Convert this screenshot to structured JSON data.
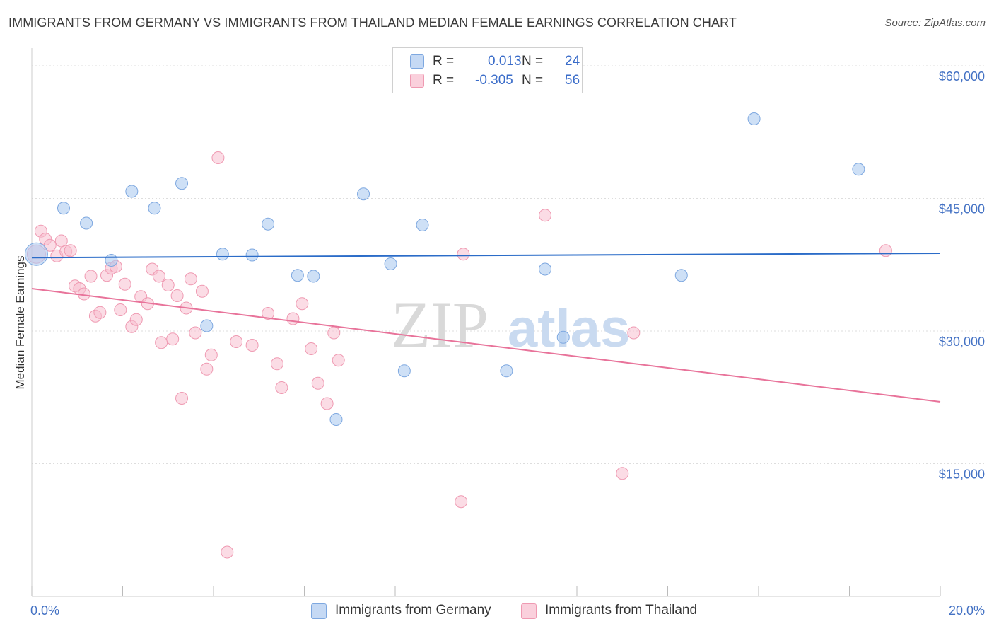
{
  "title": "IMMIGRANTS FROM GERMANY VS IMMIGRANTS FROM THAILAND MEDIAN FEMALE EARNINGS CORRELATION CHART",
  "source": "Source: ZipAtlas.com",
  "watermark": {
    "zip": "ZIP",
    "atlas": "atlas"
  },
  "legend": {
    "rows": [
      {
        "r_label": "R =",
        "r_value": "0.013",
        "n_label": "N =",
        "n_value": "24"
      },
      {
        "r_label": "R =",
        "r_value": "-0.305",
        "n_label": "N =",
        "n_value": "56"
      }
    ]
  },
  "colors": {
    "germany_fill": "#aecbf0",
    "germany_stroke": "#7ea8e0",
    "germany_line": "#2b6cc8",
    "thailand_fill": "#f7bfcf",
    "thailand_stroke": "#ef9ab2",
    "thailand_line": "#e8739a",
    "axis_text": "#4472c4",
    "grid": "#dddddd"
  },
  "chart_data": {
    "type": "scatter",
    "title": "IMMIGRANTS FROM GERMANY VS IMMIGRANTS FROM THAILAND MEDIAN FEMALE EARNINGS CORRELATION CHART",
    "xlabel": "",
    "ylabel": "Median Female Earnings",
    "xlim": [
      0,
      20
    ],
    "ylim": [
      0,
      62000
    ],
    "x_tick_labels": [
      "0.0%",
      "20.0%"
    ],
    "y_ticks": [
      15000,
      30000,
      45000,
      60000
    ],
    "y_tick_labels": [
      "$15,000",
      "$30,000",
      "$45,000",
      "$60,000"
    ],
    "series": [
      {
        "name": "Immigrants from Germany",
        "color": "#aecbf0",
        "trend": {
          "x": [
            0,
            20
          ],
          "y": [
            38300,
            38800
          ]
        },
        "points": [
          {
            "x": 0.1,
            "y": 38700,
            "big": true
          },
          {
            "x": 0.7,
            "y": 43900
          },
          {
            "x": 1.2,
            "y": 42200
          },
          {
            "x": 1.75,
            "y": 38000
          },
          {
            "x": 2.2,
            "y": 45800
          },
          {
            "x": 2.7,
            "y": 43900
          },
          {
            "x": 3.3,
            "y": 46700
          },
          {
            "x": 3.85,
            "y": 30600
          },
          {
            "x": 4.2,
            "y": 38700
          },
          {
            "x": 4.85,
            "y": 38600
          },
          {
            "x": 5.2,
            "y": 42100
          },
          {
            "x": 5.85,
            "y": 36300
          },
          {
            "x": 6.2,
            "y": 36200
          },
          {
            "x": 6.7,
            "y": 20000
          },
          {
            "x": 7.3,
            "y": 45500
          },
          {
            "x": 7.9,
            "y": 37600
          },
          {
            "x": 8.2,
            "y": 25500
          },
          {
            "x": 8.6,
            "y": 42000
          },
          {
            "x": 10.45,
            "y": 25500
          },
          {
            "x": 11.3,
            "y": 37000
          },
          {
            "x": 11.7,
            "y": 29300
          },
          {
            "x": 14.3,
            "y": 36300
          },
          {
            "x": 15.9,
            "y": 54000
          },
          {
            "x": 18.2,
            "y": 48300
          }
        ]
      },
      {
        "name": "Immigrants from Thailand",
        "color": "#f7bfcf",
        "trend": {
          "x": [
            0,
            20
          ],
          "y": [
            34800,
            22000
          ]
        },
        "points": [
          {
            "x": 0.1,
            "y": 38700,
            "big": true
          },
          {
            "x": 0.2,
            "y": 41300
          },
          {
            "x": 0.3,
            "y": 40400
          },
          {
            "x": 0.4,
            "y": 39700
          },
          {
            "x": 0.55,
            "y": 38500
          },
          {
            "x": 0.65,
            "y": 40200
          },
          {
            "x": 0.75,
            "y": 39000
          },
          {
            "x": 0.85,
            "y": 39100
          },
          {
            "x": 0.95,
            "y": 35100
          },
          {
            "x": 1.05,
            "y": 34800
          },
          {
            "x": 1.15,
            "y": 34200
          },
          {
            "x": 1.3,
            "y": 36200
          },
          {
            "x": 1.4,
            "y": 31700
          },
          {
            "x": 1.5,
            "y": 32100
          },
          {
            "x": 1.65,
            "y": 36300
          },
          {
            "x": 1.75,
            "y": 37100
          },
          {
            "x": 1.85,
            "y": 37300
          },
          {
            "x": 1.95,
            "y": 32400
          },
          {
            "x": 2.05,
            "y": 35300
          },
          {
            "x": 2.2,
            "y": 30500
          },
          {
            "x": 2.3,
            "y": 31300
          },
          {
            "x": 2.4,
            "y": 33900
          },
          {
            "x": 2.55,
            "y": 33100
          },
          {
            "x": 2.65,
            "y": 37000
          },
          {
            "x": 2.8,
            "y": 36200
          },
          {
            "x": 2.85,
            "y": 28700
          },
          {
            "x": 3.0,
            "y": 35200
          },
          {
            "x": 3.1,
            "y": 29100
          },
          {
            "x": 3.2,
            "y": 34000
          },
          {
            "x": 3.3,
            "y": 22400
          },
          {
            "x": 3.4,
            "y": 32600
          },
          {
            "x": 3.5,
            "y": 35900
          },
          {
            "x": 3.6,
            "y": 29800
          },
          {
            "x": 3.75,
            "y": 34500
          },
          {
            "x": 3.85,
            "y": 25700
          },
          {
            "x": 3.95,
            "y": 27300
          },
          {
            "x": 4.1,
            "y": 49600
          },
          {
            "x": 4.3,
            "y": 5000
          },
          {
            "x": 4.5,
            "y": 28800
          },
          {
            "x": 4.85,
            "y": 28400
          },
          {
            "x": 5.2,
            "y": 32000
          },
          {
            "x": 5.4,
            "y": 26300
          },
          {
            "x": 5.5,
            "y": 23600
          },
          {
            "x": 5.75,
            "y": 31400
          },
          {
            "x": 5.95,
            "y": 33100
          },
          {
            "x": 6.15,
            "y": 28000
          },
          {
            "x": 6.3,
            "y": 24100
          },
          {
            "x": 6.5,
            "y": 21800
          },
          {
            "x": 6.65,
            "y": 29800
          },
          {
            "x": 6.75,
            "y": 26700
          },
          {
            "x": 9.45,
            "y": 10700
          },
          {
            "x": 9.5,
            "y": 38700
          },
          {
            "x": 11.3,
            "y": 43100
          },
          {
            "x": 13.0,
            "y": 13900
          },
          {
            "x": 13.25,
            "y": 29800
          },
          {
            "x": 18.8,
            "y": 39100
          }
        ]
      }
    ],
    "legend_position": "top-center"
  },
  "bottom_legend": [
    {
      "label": "Immigrants from Germany"
    },
    {
      "label": "Immigrants from Thailand"
    }
  ]
}
